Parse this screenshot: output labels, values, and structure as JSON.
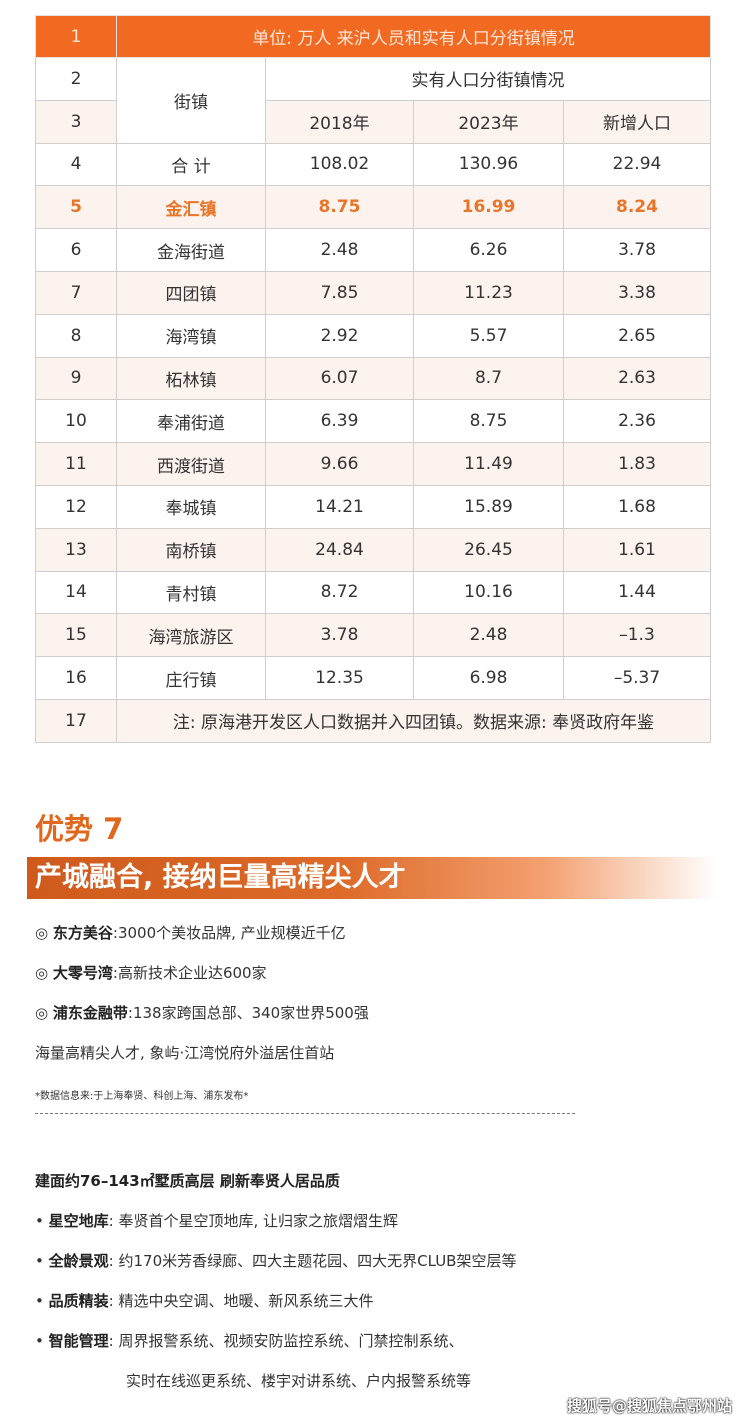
{
  "table": {
    "title_row": {
      "index": "1",
      "text": "单位: 万人 来沪人员和实有人口分街镇情况"
    },
    "header": {
      "index2": "2",
      "index3": "3",
      "town_label": "街镇",
      "group_label": "实有人口分街镇情况",
      "col_2018": "2018年",
      "col_2023": "2023年",
      "col_new": "新增人口"
    },
    "rows": [
      {
        "i": "4",
        "name": "合 计",
        "y2018": "108.02",
        "y2023": "130.96",
        "new": "22.94"
      },
      {
        "i": "5",
        "name": "金汇镇",
        "y2018": "8.75",
        "y2023": "16.99",
        "new": "8.24",
        "highlight": true
      },
      {
        "i": "6",
        "name": "金海街道",
        "y2018": "2.48",
        "y2023": "6.26",
        "new": "3.78"
      },
      {
        "i": "7",
        "name": "四团镇",
        "y2018": "7.85",
        "y2023": "11.23",
        "new": "3.38"
      },
      {
        "i": "8",
        "name": "海湾镇",
        "y2018": "2.92",
        "y2023": "5.57",
        "new": "2.65"
      },
      {
        "i": "9",
        "name": "柘林镇",
        "y2018": "6.07",
        "y2023": "8.7",
        "new": "2.63"
      },
      {
        "i": "10",
        "name": "奉浦街道",
        "y2018": "6.39",
        "y2023": "8.75",
        "new": "2.36"
      },
      {
        "i": "11",
        "name": "西渡街道",
        "y2018": "9.66",
        "y2023": "11.49",
        "new": "1.83"
      },
      {
        "i": "12",
        "name": "奉城镇",
        "y2018": "14.21",
        "y2023": "15.89",
        "new": "1.68"
      },
      {
        "i": "13",
        "name": "南桥镇",
        "y2018": "24.84",
        "y2023": "26.45",
        "new": "1.61"
      },
      {
        "i": "14",
        "name": "青村镇",
        "y2018": "8.72",
        "y2023": "10.16",
        "new": "1.44"
      },
      {
        "i": "15",
        "name": "海湾旅游区",
        "y2018": "3.78",
        "y2023": "2.48",
        "new": "–1.3"
      },
      {
        "i": "16",
        "name": "庄行镇",
        "y2018": "12.35",
        "y2023": "6.98",
        "new": "–5.37"
      }
    ],
    "footer": {
      "index": "17",
      "text": "注: 原海港开发区人口数据并入四团镇。数据来源: 奉贤政府年鉴"
    }
  },
  "advantage": {
    "title": "优势 7",
    "banner": "产城融合, 接纳巨量高精尖人才",
    "items": [
      {
        "bullet": "◎",
        "label": "东方美谷",
        "text": ":3000个美妆品牌, 产业规模近千亿"
      },
      {
        "bullet": "◎",
        "label": "大零号湾",
        "text": ":高新技术企业达600家"
      },
      {
        "bullet": "◎",
        "label": "浦东金融带",
        "text": ":138家跨国总部、340家世界500强"
      }
    ],
    "summary": "海量高精尖人才, 象屿·江湾悦府外溢居住首站",
    "note": "*数据信息来:于上海奉贤、科创上海、浦东发布*"
  },
  "product": {
    "heading": "建面约76–143㎡墅质高层 刷新奉贤人居品质",
    "items": [
      {
        "label": "星空地库",
        "text": ": 奉贤首个星空顶地库, 让归家之旅熠熠生辉"
      },
      {
        "label": "全龄景观",
        "text": ": 约170米芳香绿廊、四大主题花园、四大无界CLUB架空层等"
      },
      {
        "label": "品质精装",
        "text": ": 精选中央空调、地暖、新风系统三大件"
      },
      {
        "label": "智能管理",
        "text": ": 周界报警系统、视频安防监控系统、门禁控制系统、"
      }
    ],
    "continuation": "实时在线巡更系统、楼宇对讲系统、户内报警系统等"
  },
  "watermark": "搜狐号@搜狐焦点鄂州站",
  "colors": {
    "accent": "#f26a22",
    "highlight_text": "#e8762a",
    "row_tint": "#fdf3ee"
  }
}
